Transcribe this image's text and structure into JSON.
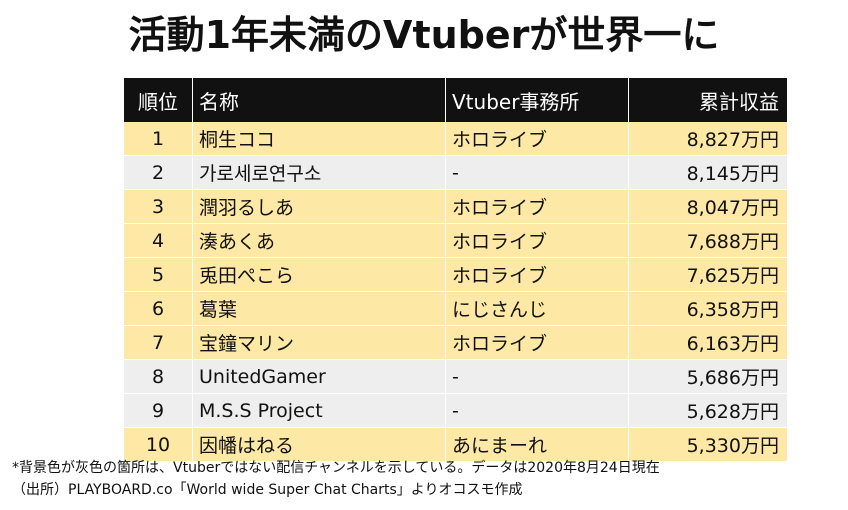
{
  "title": "活動1年未満のVtuberが世界一に",
  "table": {
    "headers": {
      "rank": "順位",
      "name": "名称",
      "agency": "Vtuber事務所",
      "revenue": "累計収益"
    },
    "rows": [
      {
        "rank": "1",
        "name": "桐生ココ",
        "agency": "ホロライブ",
        "revenue": "8,827万円",
        "highlight": "gold"
      },
      {
        "rank": "2",
        "name": "가로세로연구소",
        "agency": "-",
        "revenue": "8,145万円",
        "highlight": "gray"
      },
      {
        "rank": "3",
        "name": "潤羽るしあ",
        "agency": "ホロライブ",
        "revenue": "8,047万円",
        "highlight": "gold"
      },
      {
        "rank": "4",
        "name": "湊あくあ",
        "agency": "ホロライブ",
        "revenue": "7,688万円",
        "highlight": "gold"
      },
      {
        "rank": "5",
        "name": "兎田ぺこら",
        "agency": "ホロライブ",
        "revenue": "7,625万円",
        "highlight": "gold"
      },
      {
        "rank": "6",
        "name": "葛葉",
        "agency": "にじさんじ",
        "revenue": "6,358万円",
        "highlight": "gold"
      },
      {
        "rank": "7",
        "name": "宝鐘マリン",
        "agency": "ホロライブ",
        "revenue": "6,163万円",
        "highlight": "gold"
      },
      {
        "rank": "8",
        "name": "UnitedGamer",
        "agency": "-",
        "revenue": "5,686万円",
        "highlight": "gray"
      },
      {
        "rank": "9",
        "name": "M.S.S Project",
        "agency": "-",
        "revenue": "5,628万円",
        "highlight": "gray"
      },
      {
        "rank": "10",
        "name": "因幡はねる",
        "agency": "あにまーれ",
        "revenue": "5,330万円",
        "highlight": "gold"
      }
    ]
  },
  "footnote": {
    "line1": "*背景色が灰色の箇所は、Vtuberではない配信チャンネルを示している。データは2020年8月24日現在",
    "line2": "（出所）PLAYBOARD.co「World wide Super Chat Charts」よりオコスモ作成"
  },
  "colors": {
    "header_bg": "#111111",
    "highlight_gold": "#fde8a6",
    "highlight_gray": "#eeeeee"
  }
}
